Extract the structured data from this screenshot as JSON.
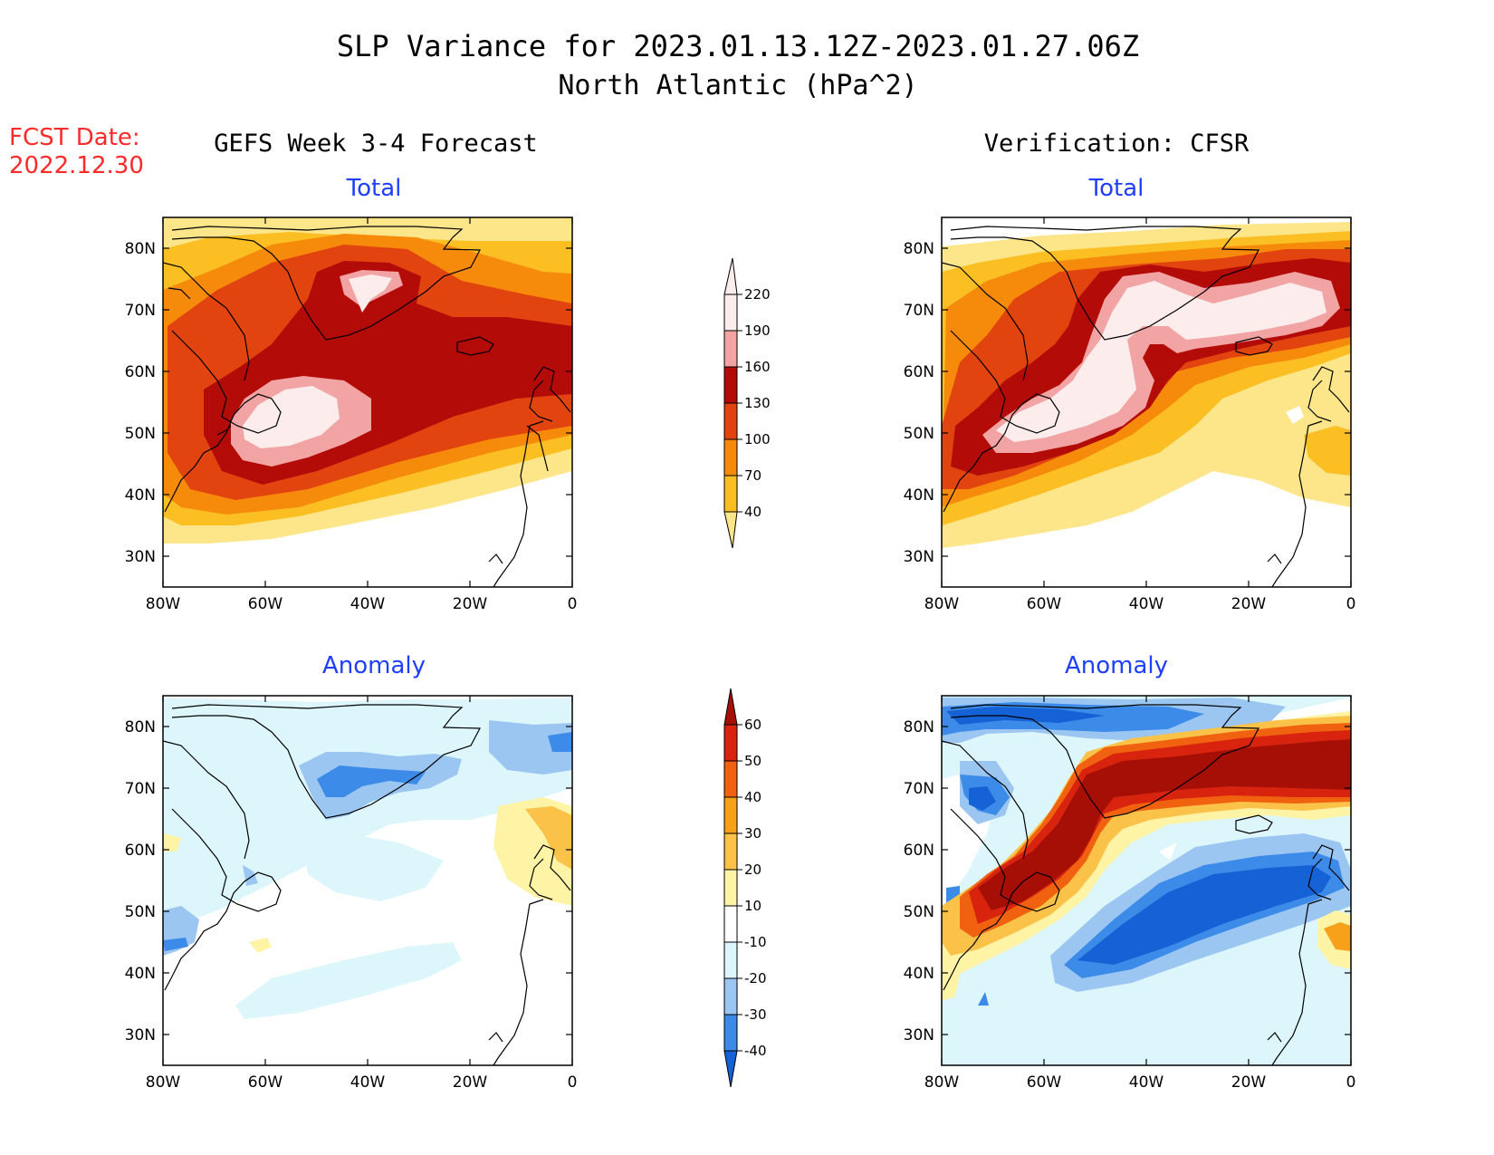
{
  "title": {
    "line1": "SLP Variance for 2023.01.13.12Z-2023.01.27.06Z",
    "line2": "North Atlantic (hPa^2)"
  },
  "fcst_date": {
    "label": "FCST Date:",
    "value": "2022.12.30"
  },
  "columns": {
    "left": "GEFS Week 3-4 Forecast",
    "right": "Verification: CFSR"
  },
  "panel_titles": {
    "total": "Total",
    "anomaly": "Anomaly"
  },
  "axes": {
    "lat_ticks": [
      "30N",
      "40N",
      "50N",
      "60N",
      "70N",
      "80N"
    ],
    "lon_ticks": [
      "80W",
      "60W",
      "40W",
      "20W",
      "0"
    ],
    "lat_range": [
      25,
      85
    ],
    "lon_range": [
      -80,
      0
    ]
  },
  "colorbars": {
    "total": {
      "labels": [
        "40",
        "70",
        "100",
        "130",
        "160",
        "190",
        "220"
      ],
      "colors": [
        "#fde68a",
        "#fbbf24",
        "#f58a0b",
        "#e2440f",
        "#b30b08",
        "#f2a3a3",
        "#fdecec"
      ]
    },
    "anomaly": {
      "labels": [
        "-40",
        "-30",
        "-20",
        "-10",
        "10",
        "20",
        "30",
        "40",
        "50",
        "60"
      ],
      "colors": [
        "#1561d6",
        "#3d8be8",
        "#9cc6f2",
        "#ddf6fb",
        "#ffffff",
        "#fff3a6",
        "#fbc24a",
        "#f7a11a",
        "#f0620f",
        "#d8230f",
        "#a60f06"
      ]
    }
  },
  "colors": {
    "title_text": "#000000",
    "panel_title_text": "#1f3fff",
    "fcst_text": "#ff2a2a",
    "coastline": "#000000"
  }
}
